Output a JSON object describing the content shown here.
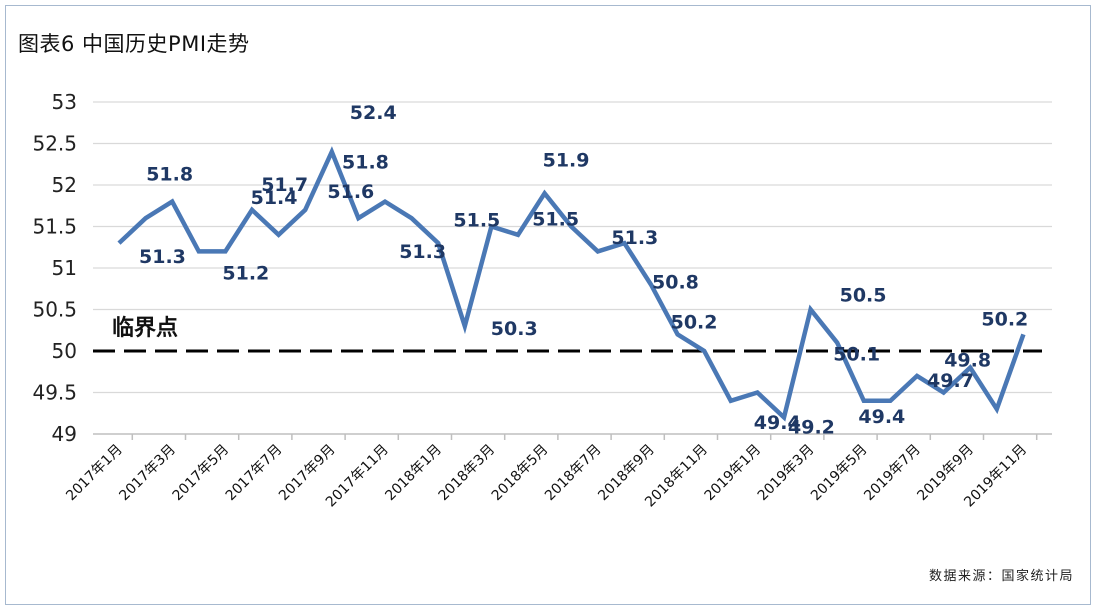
{
  "title": "图表6  中国历史PMI走势",
  "source": "数据来源：国家统计局",
  "colors": {
    "line": "#4a78b5",
    "label": "#1f3864",
    "grid": "#d9d9d9",
    "threshold": "#000000"
  },
  "chart_data": {
    "type": "line",
    "title": "图表6  中国历史PMI走势",
    "xlabel": "",
    "ylabel": "",
    "ylim": [
      49,
      53
    ],
    "yticks": [
      49,
      49.5,
      50,
      50.5,
      51,
      51.5,
      52,
      52.5,
      53
    ],
    "ytick_labels": [
      "49",
      "49.5",
      "50",
      "50.5",
      "51",
      "51.5",
      "52",
      "52.5",
      "53"
    ],
    "grid": true,
    "x": [
      "2017年1月",
      "2017年2月",
      "2017年3月",
      "2017年4月",
      "2017年5月",
      "2017年6月",
      "2017年7月",
      "2017年8月",
      "2017年9月",
      "2017年10月",
      "2017年11月",
      "2017年12月",
      "2018年1月",
      "2018年2月",
      "2018年3月",
      "2018年4月",
      "2018年5月",
      "2018年6月",
      "2018年7月",
      "2018年8月",
      "2018年9月",
      "2018年10月",
      "2018年11月",
      "2018年12月",
      "2019年1月",
      "2019年2月",
      "2019年3月",
      "2019年4月",
      "2019年5月",
      "2019年6月",
      "2019年7月",
      "2019年8月",
      "2019年9月",
      "2019年10月",
      "2019年11月"
    ],
    "xtick_labels": [
      "2017年1月",
      "2017年3月",
      "2017年5月",
      "2017年7月",
      "2017年9月",
      "2017年11月",
      "2018年1月",
      "2018年3月",
      "2018年5月",
      "2018年7月",
      "2018年9月",
      "2018年11月",
      "2019年1月",
      "2019年3月",
      "2019年5月",
      "2019年7月",
      "2019年9月",
      "2019年11月"
    ],
    "series": [
      {
        "values": [
          51.3,
          51.6,
          51.8,
          51.2,
          51.2,
          51.7,
          51.4,
          51.7,
          52.4,
          51.6,
          51.8,
          51.6,
          51.3,
          50.3,
          51.5,
          51.4,
          51.9,
          51.5,
          51.2,
          51.3,
          50.8,
          50.2,
          50.0,
          49.4,
          49.5,
          49.2,
          50.5,
          50.1,
          49.4,
          49.4,
          49.7,
          49.5,
          49.8,
          49.3,
          50.2
        ]
      }
    ],
    "data_labels": [
      {
        "text": "51.3",
        "index": 0
      },
      {
        "text": "51.8",
        "index": 2
      },
      {
        "text": "51.2",
        "index": 4
      },
      {
        "text": "51.7",
        "index": 7
      },
      {
        "text": "51.4",
        "index": 6
      },
      {
        "text": "52.4",
        "index": 8
      },
      {
        "text": "51.6",
        "index": 9
      },
      {
        "text": "51.8",
        "index": 10
      },
      {
        "text": "51.3",
        "index": 12
      },
      {
        "text": "50.3",
        "index": 13
      },
      {
        "text": "51.5",
        "index": 14
      },
      {
        "text": "51.9",
        "index": 16
      },
      {
        "text": "51.5",
        "index": 17
      },
      {
        "text": "51.3",
        "index": 19
      },
      {
        "text": "50.8",
        "index": 20
      },
      {
        "text": "50.2",
        "index": 21
      },
      {
        "text": "49.4",
        "index": 23
      },
      {
        "text": "49.2",
        "index": 25
      },
      {
        "text": "50.5",
        "index": 26
      },
      {
        "text": "50.1",
        "index": 27
      },
      {
        "text": "49.4",
        "index": 29
      },
      {
        "text": "49.7",
        "index": 30
      },
      {
        "text": "49.8",
        "index": 32
      },
      {
        "text": "50.2",
        "index": 34
      }
    ],
    "threshold": {
      "value": 50,
      "label": "临界点",
      "style": "dashed"
    }
  }
}
